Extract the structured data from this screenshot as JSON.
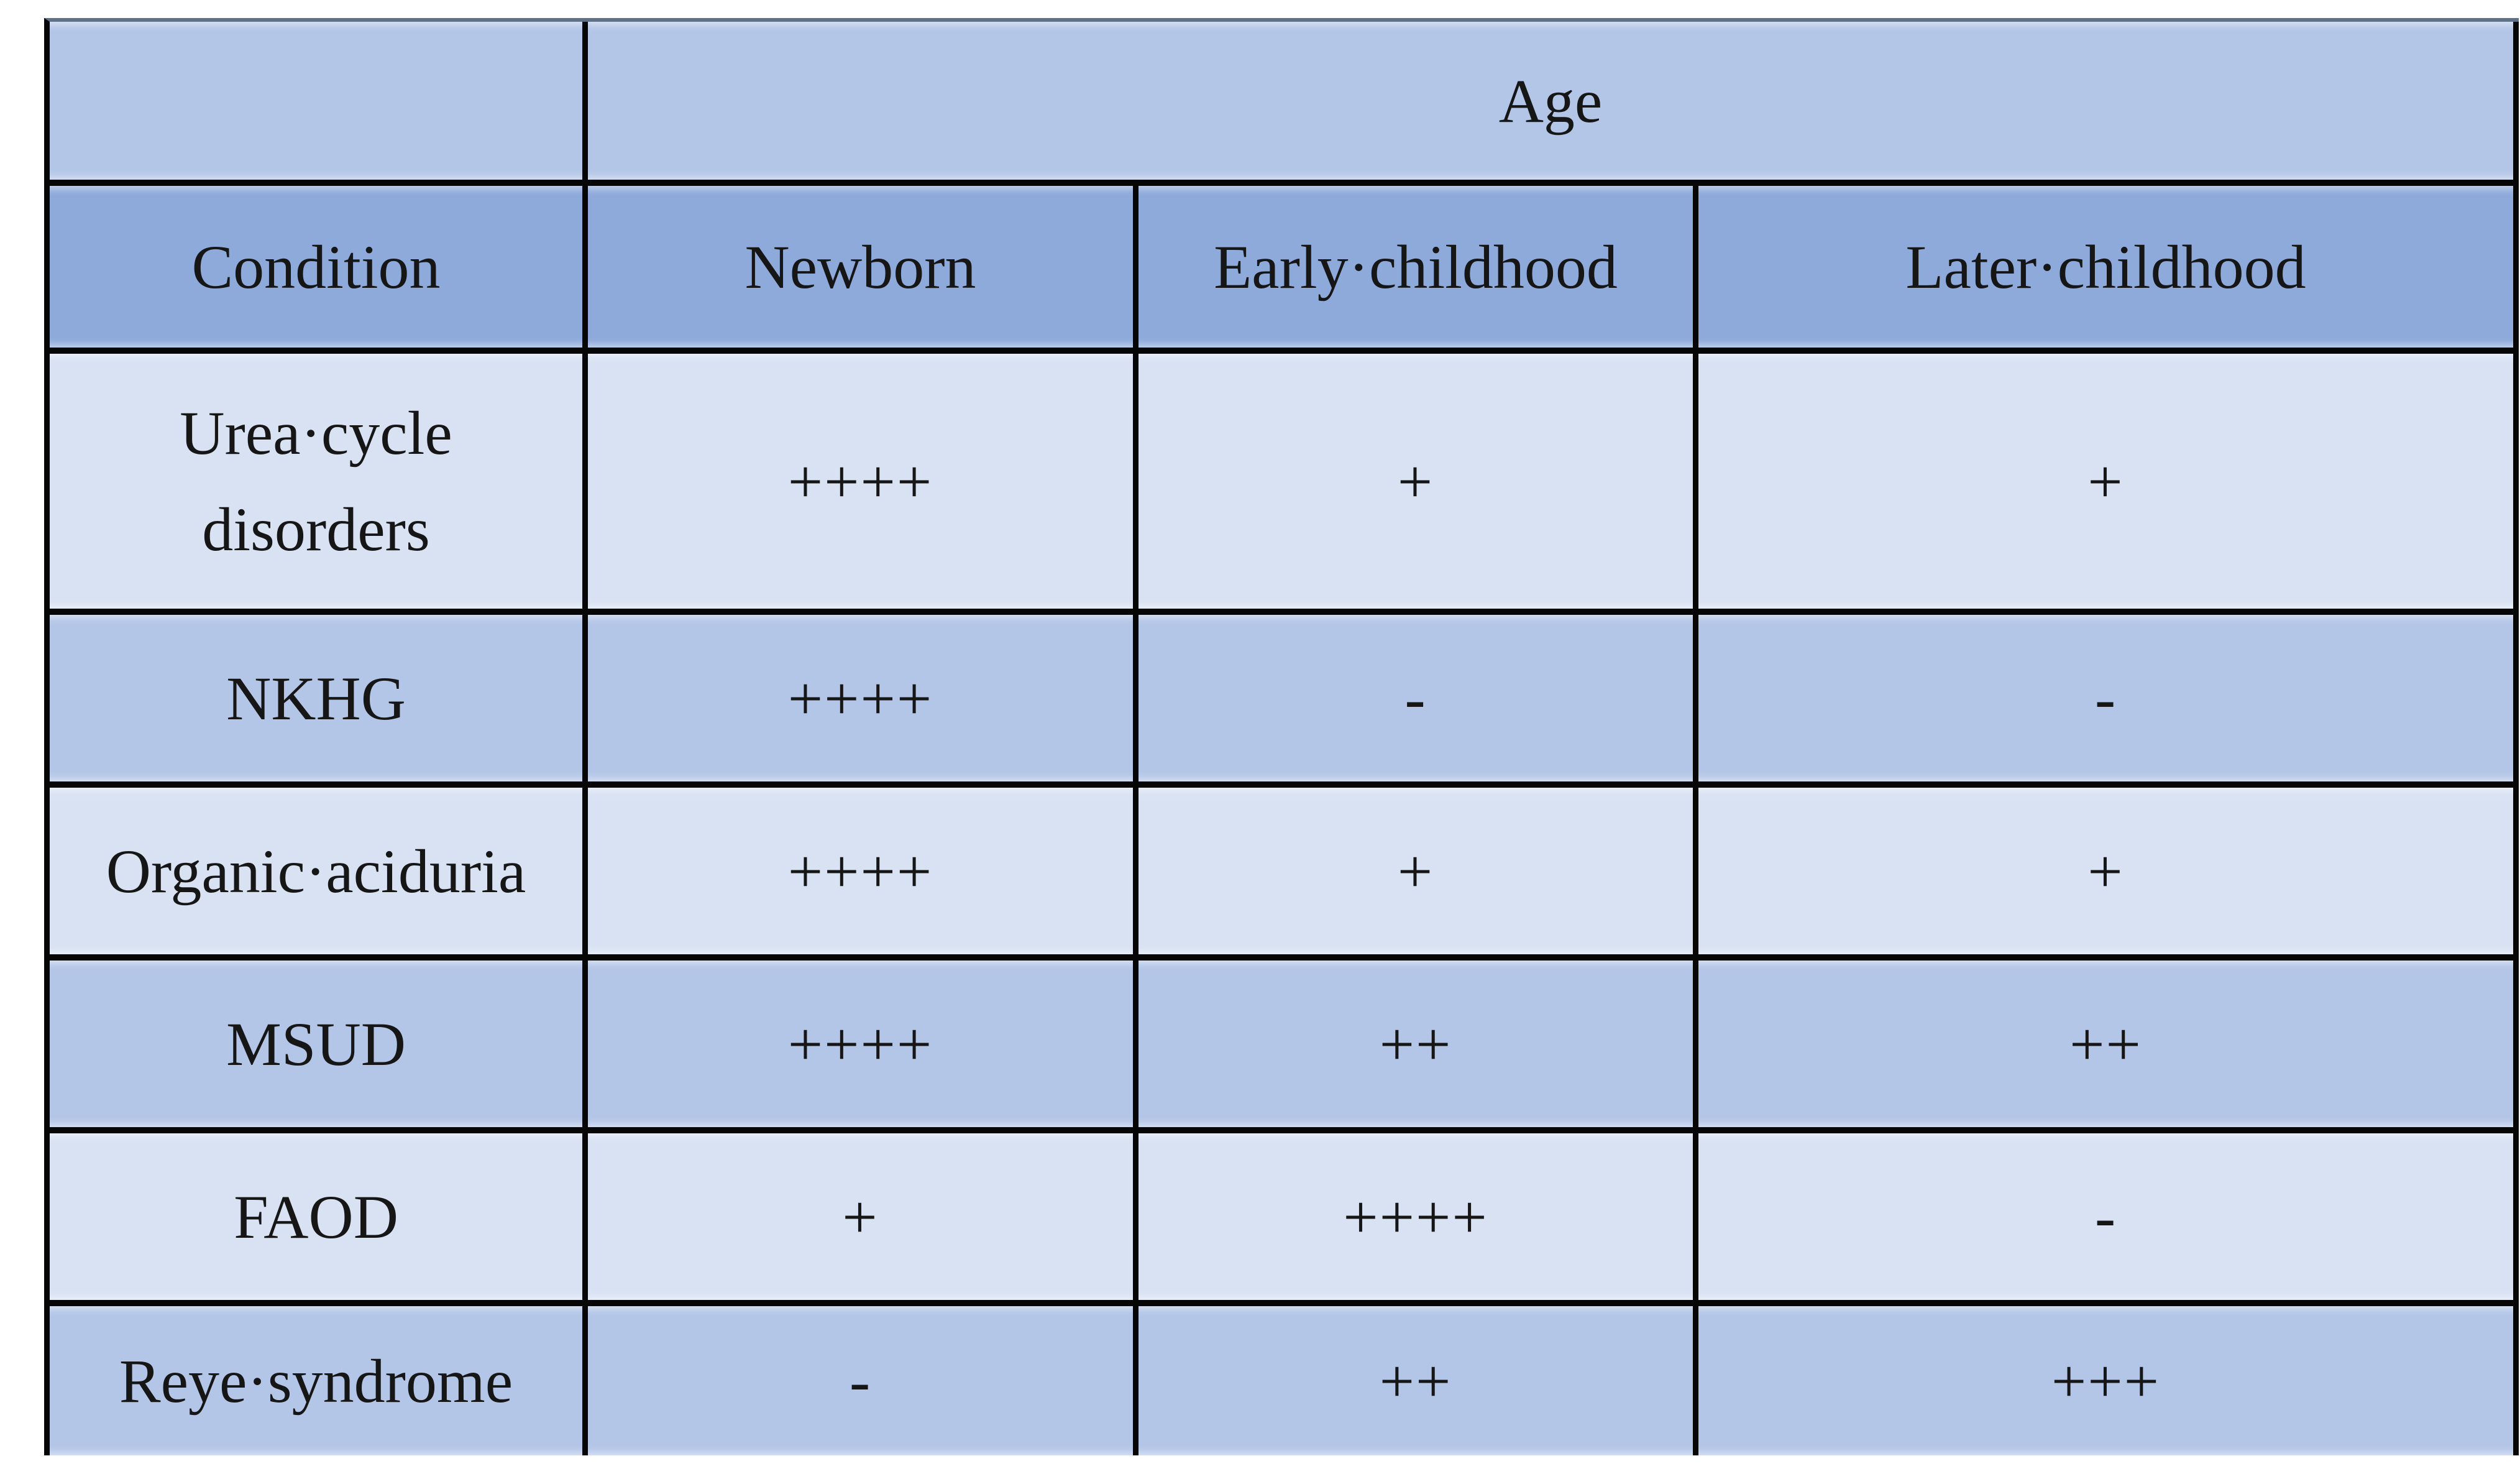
{
  "table": {
    "age_label": "Age",
    "columns": [
      "Condition",
      "Newborn",
      "Early·childhood",
      "Later·childhood"
    ],
    "rows": [
      {
        "label": "Urea·cycle disorders",
        "values": [
          "++++",
          "+",
          "+"
        ]
      },
      {
        "label": "NKHG",
        "values": [
          "++++",
          "-",
          "-"
        ]
      },
      {
        "label": "Organic·aciduria",
        "values": [
          "++++",
          "+",
          "+"
        ]
      },
      {
        "label": "MSUD",
        "values": [
          "++++",
          "++",
          "++"
        ]
      },
      {
        "label": "FAOD",
        "values": [
          "+",
          "++++",
          "-"
        ]
      },
      {
        "label": "Reye·syndrome",
        "values": [
          "-",
          "++",
          "+++"
        ]
      }
    ],
    "colors": {
      "header_fill": "#8eaadb",
      "band_fill": "#b4c6e7",
      "light_fill": "#d9e2f3",
      "border": "#060606",
      "text": "#161616"
    }
  }
}
